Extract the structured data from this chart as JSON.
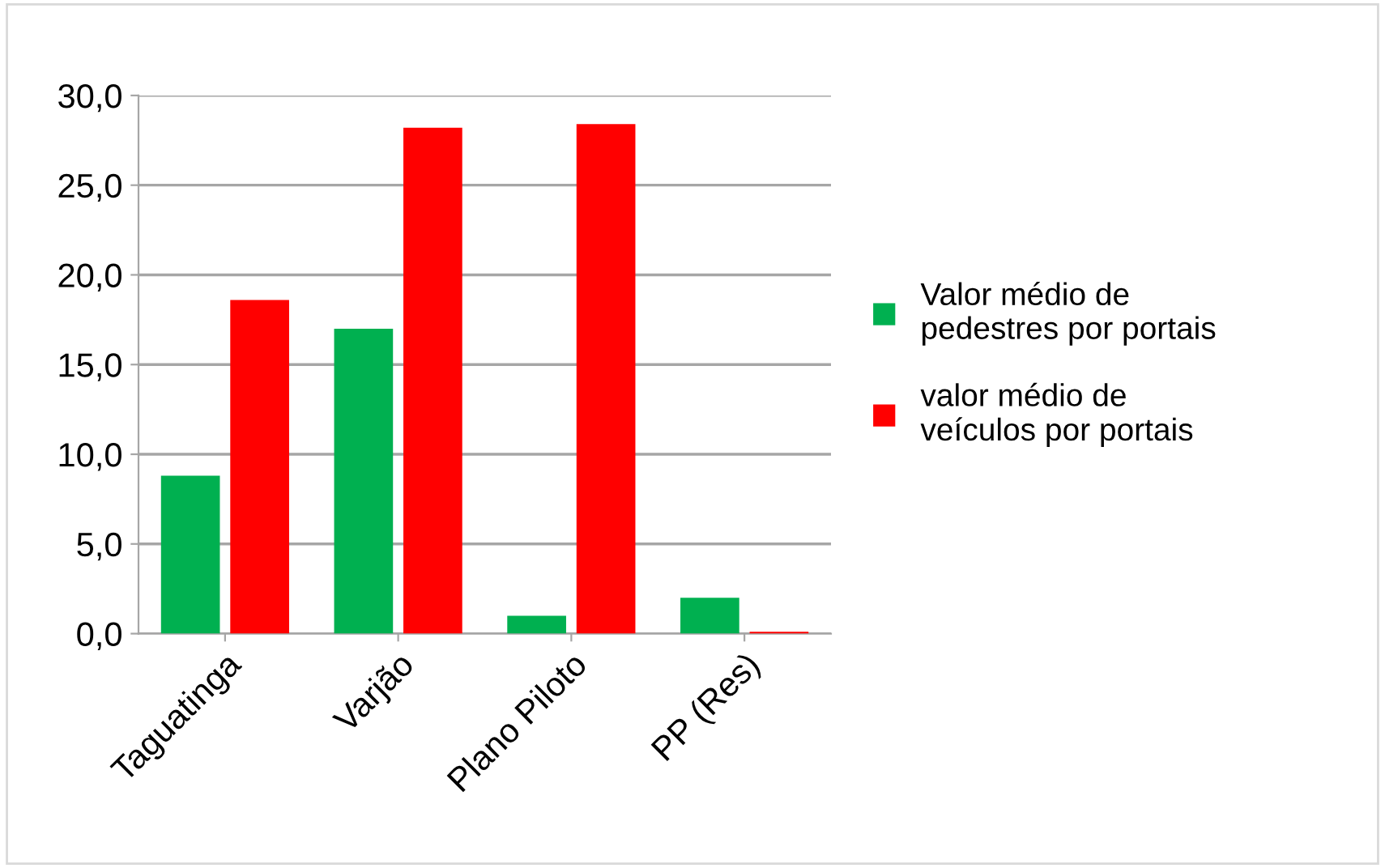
{
  "chart_data": {
    "type": "bar",
    "categories": [
      "Taguatinga",
      "Varjão",
      "Plano Piloto",
      "PP (Res)"
    ],
    "series": [
      {
        "name": "Valor médio de pedestres por portais",
        "color": "#00b050",
        "values": [
          8.8,
          17.0,
          1.0,
          2.0
        ]
      },
      {
        "name": "valor médio de veículos por portais",
        "color": "#ff0000",
        "values": [
          18.6,
          28.2,
          28.4,
          0.1
        ]
      }
    ],
    "ylim": [
      0,
      30
    ],
    "yticks": [
      {
        "value": 0,
        "label": "0,0"
      },
      {
        "value": 5,
        "label": "5,0"
      },
      {
        "value": 10,
        "label": "10,0"
      },
      {
        "value": 15,
        "label": "15,0"
      },
      {
        "value": 20,
        "label": "20,0"
      },
      {
        "value": 25,
        "label": "25,0"
      },
      {
        "value": 30,
        "label": "30,0"
      }
    ],
    "grid": "y",
    "legend": "right"
  }
}
